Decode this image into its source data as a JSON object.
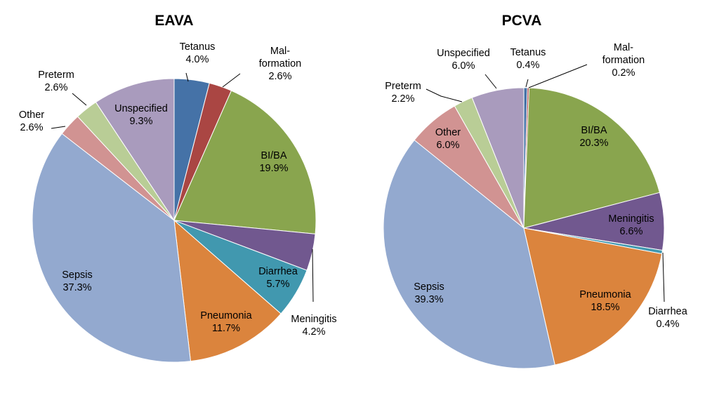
{
  "chart_data": [
    {
      "type": "pie",
      "title": "EAVA",
      "slices": [
        {
          "category": "Tetanus",
          "percent_label": "4.0%",
          "value": 4.0,
          "color": "#4572A7"
        },
        {
          "category": "Mal-formation",
          "label_lines": [
            "Mal-",
            "formation"
          ],
          "percent_label": "2.6%",
          "value": 2.6,
          "color": "#AA4643"
        },
        {
          "category": "BI/BA",
          "percent_label": "19.9%",
          "value": 19.9,
          "color": "#89A54E"
        },
        {
          "category": "Meningitis",
          "percent_label": "4.2%",
          "value": 4.2,
          "color": "#71588F"
        },
        {
          "category": "Diarrhea",
          "percent_label": "5.7%",
          "value": 5.7,
          "color": "#4198AF"
        },
        {
          "category": "Pneumonia",
          "percent_label": "11.7%",
          "value": 11.7,
          "color": "#DB843D"
        },
        {
          "category": "Sepsis",
          "percent_label": "37.3%",
          "value": 37.3,
          "color": "#93A9CF"
        },
        {
          "category": "Other",
          "percent_label": "2.6%",
          "value": 2.6,
          "color": "#D19392"
        },
        {
          "category": "Preterm",
          "percent_label": "2.6%",
          "value": 2.6,
          "color": "#B9CD96"
        },
        {
          "category": "Unspecified",
          "percent_label": "9.3%",
          "value": 9.3,
          "color": "#A99BBD"
        }
      ]
    },
    {
      "type": "pie",
      "title": "PCVA",
      "slices": [
        {
          "category": "Tetanus",
          "percent_label": "0.4%",
          "value": 0.4,
          "color": "#4572A7"
        },
        {
          "category": "Mal-formation",
          "label_lines": [
            "Mal-",
            "formation"
          ],
          "percent_label": "0.2%",
          "value": 0.2,
          "color": "#AA4643"
        },
        {
          "category": "BI/BA",
          "percent_label": "20.3%",
          "value": 20.3,
          "color": "#89A54E"
        },
        {
          "category": "Meningitis",
          "percent_label": "6.6%",
          "value": 6.6,
          "color": "#71588F"
        },
        {
          "category": "Diarrhea",
          "percent_label": "0.4%",
          "value": 0.4,
          "color": "#4198AF"
        },
        {
          "category": "Pneumonia",
          "percent_label": "18.5%",
          "value": 18.5,
          "color": "#DB843D"
        },
        {
          "category": "Sepsis",
          "percent_label": "39.3%",
          "value": 39.3,
          "color": "#93A9CF"
        },
        {
          "category": "Other",
          "percent_label": "6.0%",
          "value": 6.0,
          "color": "#D19392"
        },
        {
          "category": "Preterm",
          "percent_label": "2.2%",
          "value": 2.2,
          "color": "#B9CD96"
        },
        {
          "category": "Unspecified",
          "percent_label": "6.0%",
          "value": 6.0,
          "color": "#A99BBD"
        }
      ]
    }
  ]
}
